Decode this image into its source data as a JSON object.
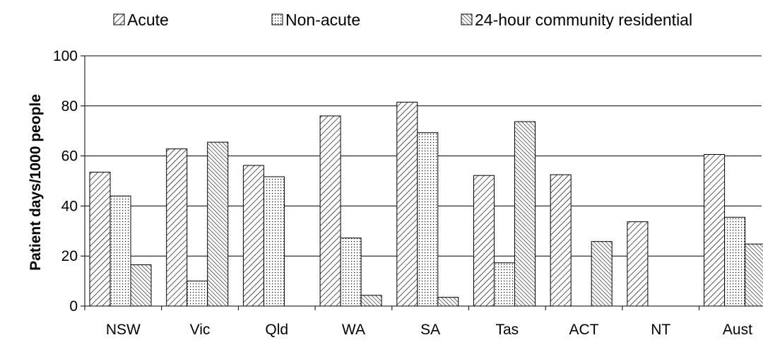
{
  "chart_data": {
    "type": "bar",
    "title": "",
    "xlabel": "",
    "ylabel": "Patient days/1000 people",
    "ylim": [
      0,
      100
    ],
    "yticks": [
      0,
      20,
      40,
      60,
      80,
      100
    ],
    "grid": true,
    "legend_position": "top",
    "categories": [
      "NSW",
      "Vic",
      "Qld",
      "WA",
      "SA",
      "Tas",
      "ACT",
      "NT",
      "Aust"
    ],
    "series": [
      {
        "name": "Acute",
        "pattern": "diagonal-forward",
        "values": [
          53.5,
          62.8,
          56.2,
          76.0,
          81.5,
          52.2,
          52.5,
          33.7,
          60.6
        ]
      },
      {
        "name": "Non-acute",
        "pattern": "dots",
        "values": [
          44.0,
          10.0,
          51.7,
          27.2,
          69.3,
          17.3,
          null,
          null,
          35.5
        ]
      },
      {
        "name": "24-hour community residential",
        "pattern": "diagonal-dense",
        "values": [
          16.5,
          65.5,
          null,
          4.3,
          3.5,
          73.7,
          25.8,
          null,
          24.8
        ]
      }
    ]
  }
}
